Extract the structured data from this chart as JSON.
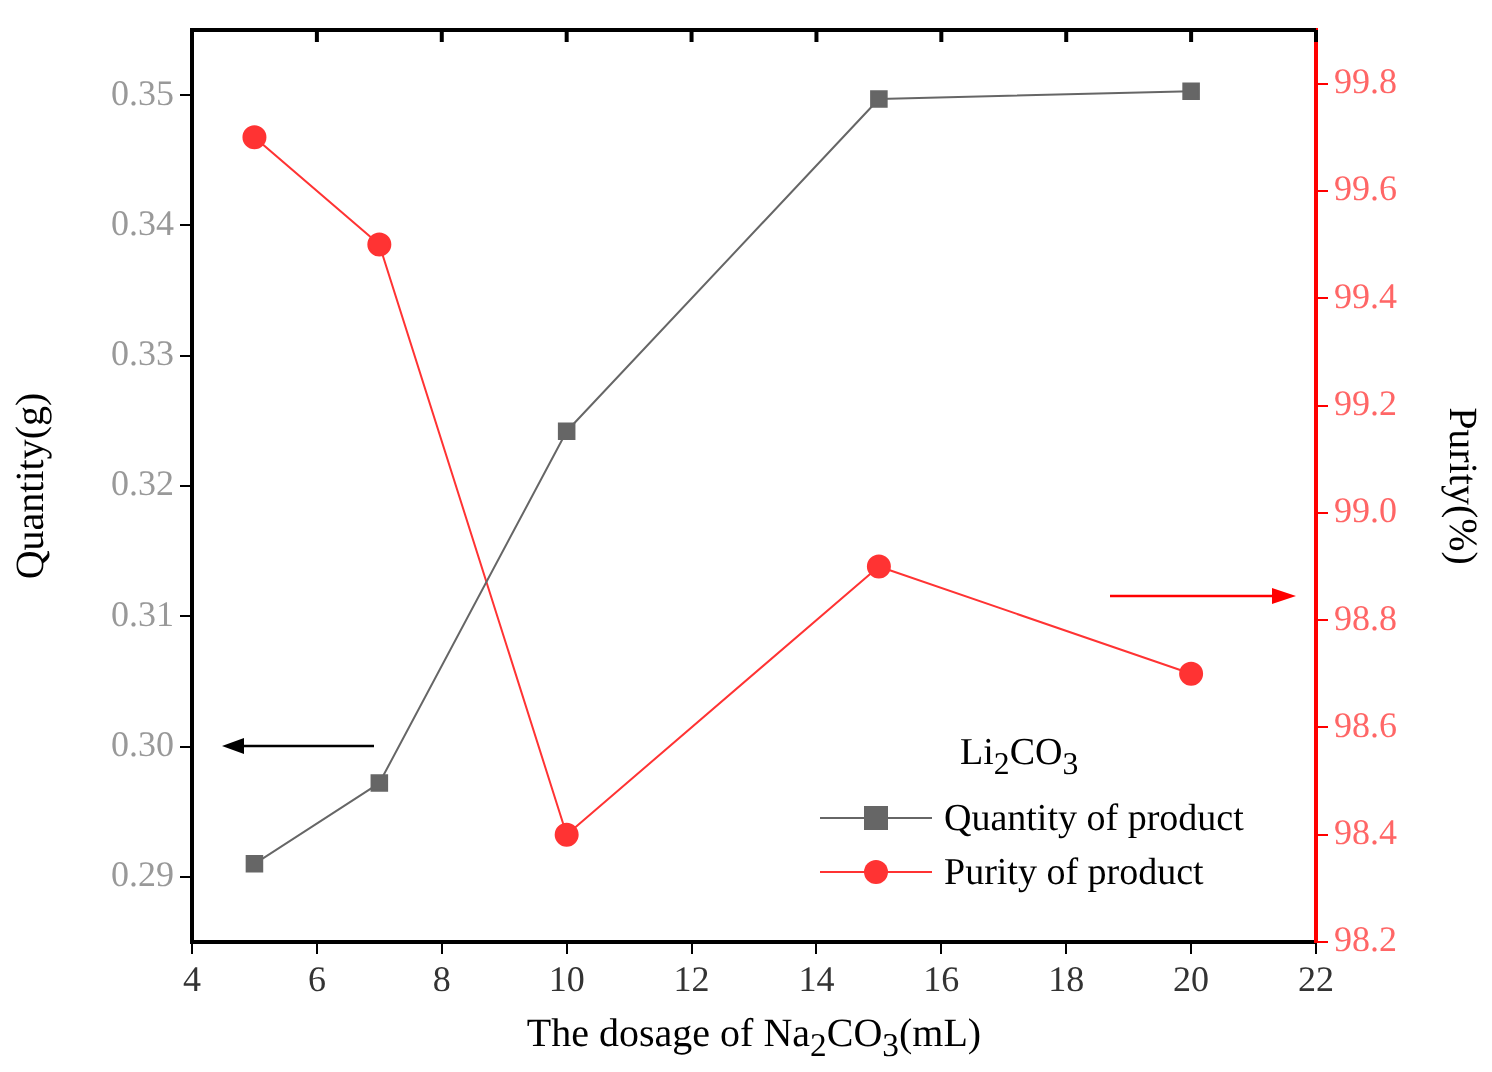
{
  "chart_data": {
    "type": "line",
    "xlabel": "The dosage of Na$_{2}$CO$_{3}$(mL)",
    "ylabel": "Quantity(g)",
    "y2label": "Purity(%)",
    "legend_title": "Li$_{2}$CO$_{3}$",
    "legend": "bottom right",
    "grid": false,
    "x": [
      5,
      7,
      10,
      15,
      20
    ],
    "xlim": [
      4,
      22
    ],
    "xticks": [
      4,
      6,
      8,
      10,
      12,
      14,
      16,
      18,
      20,
      22
    ],
    "ylim": [
      0.285,
      0.355
    ],
    "yticks": [
      0.29,
      {
        "value": 0.3,
        "label": "0.30"
      },
      0.31,
      0.32,
      0.33,
      0.34,
      0.35
    ],
    "y2lim": [
      98.2,
      99.9
    ],
    "y2ticks": [
      98.2,
      98.4,
      98.6,
      98.8,
      {
        "value": 99,
        "label": "99.0"
      },
      99.2,
      99.4,
      99.6,
      99.8
    ],
    "series": [
      {
        "name": "Quantity of product",
        "color": "#666666",
        "marker": "square",
        "values": [
          0.291,
          0.2972,
          0.3242,
          0.3497,
          0.3503
        ]
      },
      {
        "name": "Purity of product",
        "color": "#ff3333",
        "marker": "circle",
        "axis": "y2",
        "values": [
          99.7,
          99.5,
          98.4,
          98.9,
          98.7
        ]
      }
    ]
  }
}
